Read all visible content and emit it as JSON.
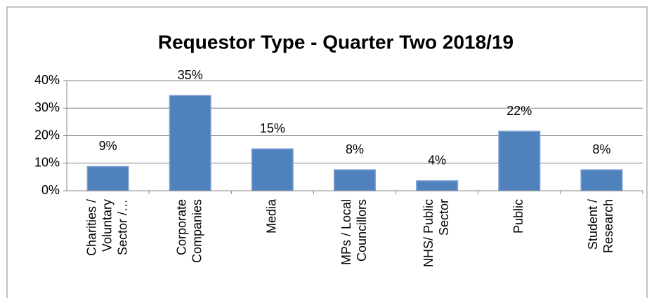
{
  "chart_data": {
    "type": "bar",
    "title": "Requestor Type - Quarter Two 2018/19",
    "categories": [
      [
        "Charities /",
        "Voluntary",
        "Sector /…"
      ],
      [
        "Corporate",
        "Companies"
      ],
      [
        "Media"
      ],
      [
        "MPs / Local",
        "Councillors"
      ],
      [
        "NHS/ Public",
        "Sector"
      ],
      [
        "Public"
      ],
      [
        "Student /",
        "Research"
      ]
    ],
    "values": [
      8.8,
      34.6,
      15.2,
      7.6,
      3.6,
      21.6,
      7.6
    ],
    "value_labels": [
      "9%",
      "35%",
      "15%",
      "8%",
      "4%",
      "22%",
      "8%"
    ],
    "color": "#4f81bd",
    "ylim": [
      0,
      40
    ],
    "yticks": [
      {
        "value": 0,
        "label": "0%"
      },
      {
        "value": 10,
        "label": "10%"
      },
      {
        "value": 20,
        "label": "20%"
      },
      {
        "value": 30,
        "label": "30%"
      },
      {
        "value": 40,
        "label": "40%"
      }
    ],
    "grid": true
  }
}
